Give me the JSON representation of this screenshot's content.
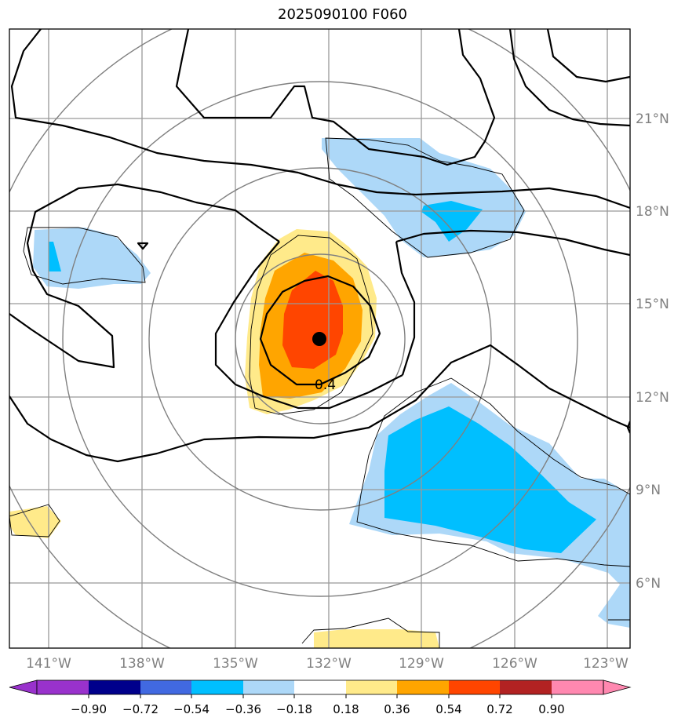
{
  "title": "2025090100 F060",
  "colors": {
    "shade_light_blue": "#add8f8",
    "shade_blue": "#00bfff",
    "shade_yellow": "#ffea8a",
    "shade_orange": "#ffa500",
    "shade_red": "#ff4500",
    "grid": "#999999",
    "range_rings": "#808080",
    "contour": "#000000"
  },
  "map": {
    "lon_labels": [
      "141°W",
      "138°W",
      "135°W",
      "132°W",
      "129°W",
      "126°W",
      "123°W"
    ],
    "lat_labels": [
      "21°N",
      "18°N",
      "15°N",
      "12°N",
      "9°N",
      "6°N"
    ],
    "contour_label": "0.4",
    "storm_center_marker": "filled-circle"
  },
  "colorbar": {
    "levels": [
      "−0.90",
      "−0.72",
      "−0.54",
      "−0.36",
      "−0.18",
      "0.18",
      "0.36",
      "0.54",
      "0.72",
      "0.90"
    ],
    "colors": [
      "#9932cc",
      "#00008b",
      "#4169e1",
      "#00bfff",
      "#add8f8",
      "#ffffff",
      "#ffea8a",
      "#ffa500",
      "#ff4500",
      "#b22222",
      "#ff88b0"
    ]
  }
}
